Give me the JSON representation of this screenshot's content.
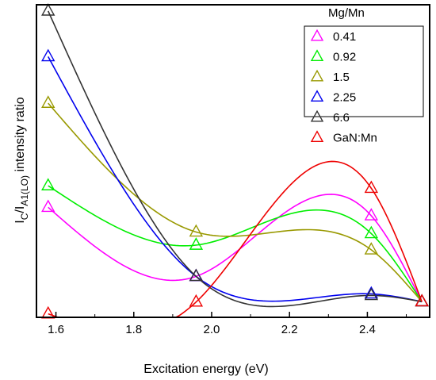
{
  "chart_data": {
    "type": "line",
    "xlabel": "Excitation energy (eV)",
    "ylabel": {
      "main": "I",
      "sub1": "C",
      "sep": "/I",
      "sub2": "A1(LO)",
      "rest": " intensity ratio"
    },
    "xlim": [
      1.55,
      2.56
    ],
    "ylim": [
      0,
      1
    ],
    "x_ticks": [
      "1.6",
      "1.8",
      "2.0",
      "2.2",
      "2.4"
    ],
    "x_tick_values": [
      1.6,
      1.8,
      2.0,
      2.2,
      2.4
    ],
    "y_ticks_labeled": false,
    "legend": {
      "title": "Mg/Mn",
      "placement": "top-right"
    },
    "series": [
      {
        "name": "0.41",
        "color": "#ff00ff",
        "x": [
          1.58,
          1.96,
          2.41,
          2.54
        ],
        "y": [
          0.352,
          0.131,
          0.325,
          0.05
        ]
      },
      {
        "name": "0.92",
        "color": "#00ee00",
        "x": [
          1.58,
          1.96,
          2.41,
          2.54
        ],
        "y": [
          0.421,
          0.231,
          0.268,
          0.05
        ]
      },
      {
        "name": "1.5",
        "color": "#999900",
        "x": [
          1.58,
          1.96,
          2.41,
          2.54
        ],
        "y": [
          0.685,
          0.273,
          0.216,
          0.05
        ]
      },
      {
        "name": "2.25",
        "color": "#0000ee",
        "x": [
          1.58,
          1.96,
          2.41,
          2.54
        ],
        "y": [
          0.834,
          0.131,
          0.075,
          0.05
        ]
      },
      {
        "name": "6.6",
        "color": "#333333",
        "x": [
          1.58,
          1.96,
          2.41,
          2.54
        ],
        "y": [
          0.98,
          0.131,
          0.07,
          0.05
        ]
      },
      {
        "name": "GaN:Mn",
        "color": "#ee0000",
        "x": [
          1.58,
          1.96,
          2.41,
          2.54
        ],
        "y": [
          0.011,
          0.049,
          0.413,
          0.05
        ]
      }
    ]
  }
}
